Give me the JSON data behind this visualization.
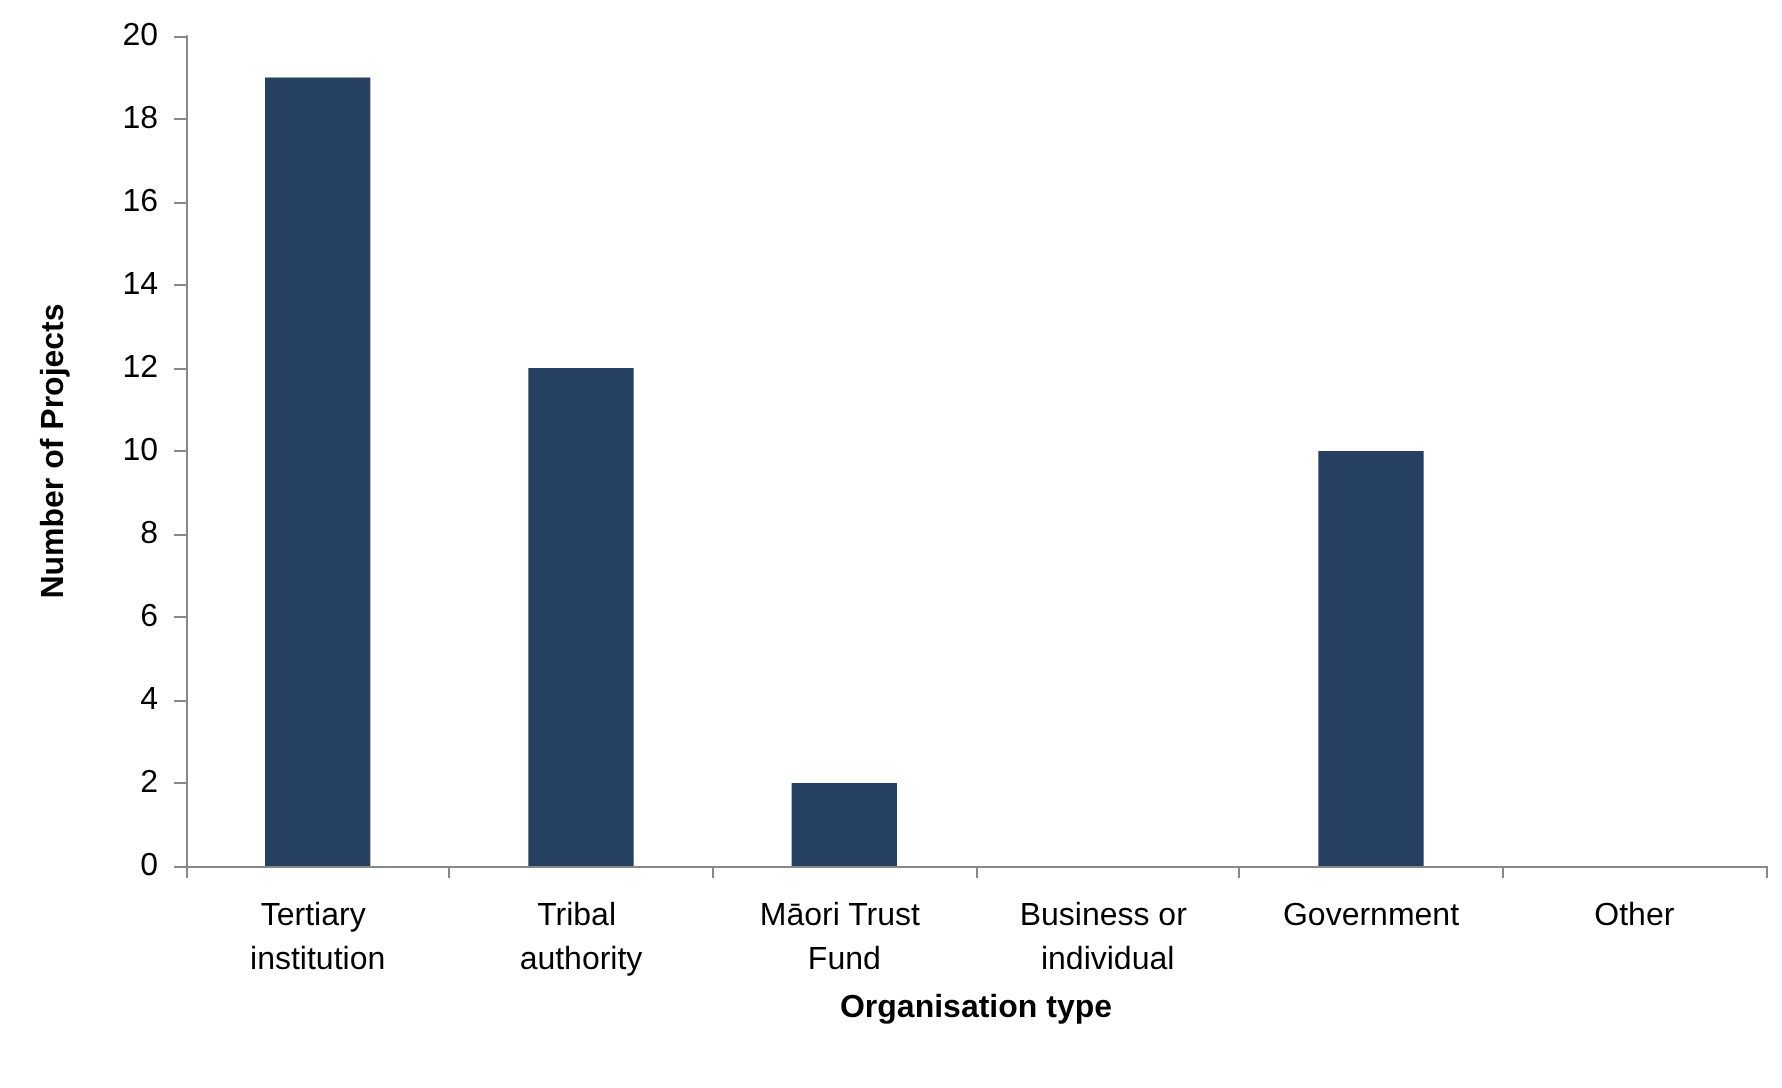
{
  "chart_data": {
    "type": "bar",
    "xlabel": "Organisation type",
    "ylabel": "Number of Projects",
    "categories": [
      "Tertiary institution",
      "Tribal authority",
      "Māori Trust Fund",
      "Business or individual",
      "Government",
      "Other"
    ],
    "values": [
      19,
      12,
      2,
      0,
      10,
      0
    ],
    "color": "#264061",
    "ylim": [
      0,
      20
    ],
    "yticks": [
      0,
      2,
      4,
      6,
      8,
      10,
      12,
      14,
      16,
      18,
      20
    ],
    "grid": false
  }
}
